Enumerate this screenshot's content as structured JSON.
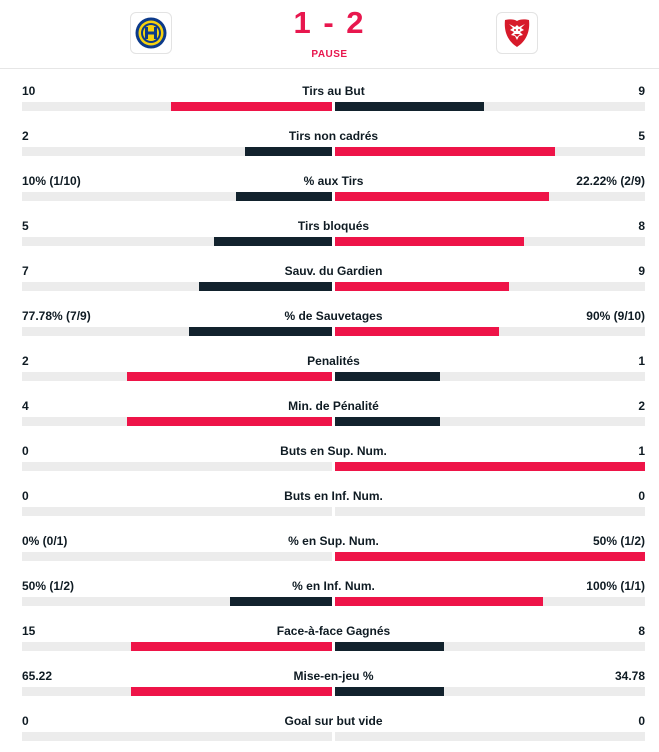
{
  "match": {
    "home_score": "1",
    "separator": "-",
    "away_score": "2",
    "status": "PAUSE",
    "home_logo": "hc-davos-crest-icon",
    "away_logo": "lausanne-hc-lion-icon"
  },
  "colors": {
    "accent": "#ee1448",
    "dark": "#12222d",
    "track": "#ececec"
  },
  "stats": [
    {
      "name": "Tirs au But",
      "home": "10",
      "away": "9",
      "home_ratio": 0.52,
      "away_ratio": 0.48,
      "winner": "home"
    },
    {
      "name": "Tirs non cadrés",
      "home": "2",
      "away": "5",
      "home_ratio": 0.28,
      "away_ratio": 0.71,
      "winner": "away"
    },
    {
      "name": "% aux Tirs",
      "home": "10% (1/10)",
      "away": "22.22% (2/9)",
      "home_ratio": 0.31,
      "away_ratio": 0.69,
      "winner": "away"
    },
    {
      "name": "Tirs bloqués",
      "home": "5",
      "away": "8",
      "home_ratio": 0.38,
      "away_ratio": 0.61,
      "winner": "away"
    },
    {
      "name": "Sauv. du Gardien",
      "home": "7",
      "away": "9",
      "home_ratio": 0.43,
      "away_ratio": 0.56,
      "winner": "away"
    },
    {
      "name": "% de Sauvetages",
      "home": "77.78% (7/9)",
      "away": "90% (9/10)",
      "home_ratio": 0.46,
      "away_ratio": 0.53,
      "winner": "away"
    },
    {
      "name": "Penalités",
      "home": "2",
      "away": "1",
      "home_ratio": 0.66,
      "away_ratio": 0.34,
      "winner": "home"
    },
    {
      "name": "Min. de Pénalité",
      "home": "4",
      "away": "2",
      "home_ratio": 0.66,
      "away_ratio": 0.34,
      "winner": "home"
    },
    {
      "name": "Buts en Sup. Num.",
      "home": "0",
      "away": "1",
      "home_ratio": 0.0,
      "away_ratio": 1.0,
      "winner": "away"
    },
    {
      "name": "Buts en Inf. Num.",
      "home": "0",
      "away": "0",
      "home_ratio": 0.0,
      "away_ratio": 0.0,
      "winner": "none"
    },
    {
      "name": "% en Sup. Num.",
      "home": "0% (0/1)",
      "away": "50% (1/2)",
      "home_ratio": 0.0,
      "away_ratio": 1.0,
      "winner": "away"
    },
    {
      "name": "% en Inf. Num.",
      "home": "50% (1/2)",
      "away": "100% (1/1)",
      "home_ratio": 0.33,
      "away_ratio": 0.67,
      "winner": "away"
    },
    {
      "name": "Face-à-face Gagnés",
      "home": "15",
      "away": "8",
      "home_ratio": 0.65,
      "away_ratio": 0.35,
      "winner": "home"
    },
    {
      "name": "Mise-en-jeu %",
      "home": "65.22",
      "away": "34.78",
      "home_ratio": 0.65,
      "away_ratio": 0.35,
      "winner": "home"
    },
    {
      "name": "Goal sur but vide",
      "home": "0",
      "away": "0",
      "home_ratio": 0.0,
      "away_ratio": 0.0,
      "winner": "none"
    }
  ]
}
